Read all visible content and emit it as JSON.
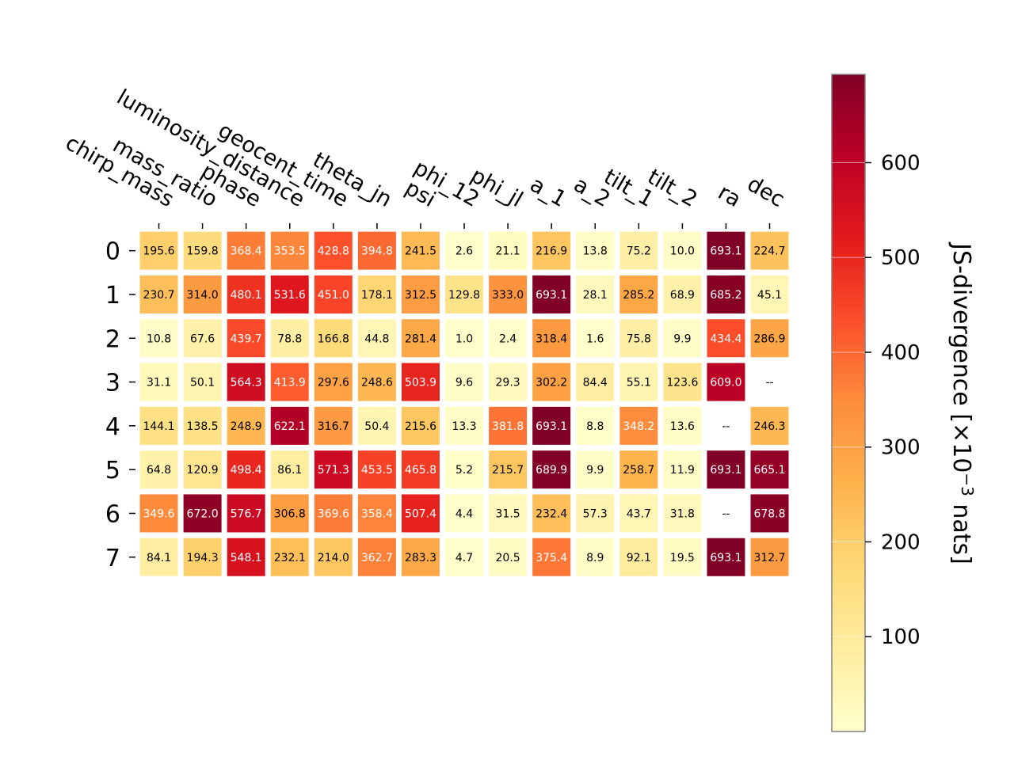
{
  "chart_data": {
    "type": "heatmap",
    "columns": [
      "chirp_mass",
      "mass_ratio",
      "phase",
      "luminosity_distance",
      "geocent_time",
      "theta_jn",
      "psi",
      "phi_12",
      "phi_jl",
      "a_1",
      "a_2",
      "tilt_1",
      "tilt_2",
      "ra",
      "dec"
    ],
    "rows": [
      "0",
      "1",
      "2",
      "3",
      "4",
      "5",
      "6",
      "7"
    ],
    "values": [
      [
        195.6,
        159.8,
        368.4,
        353.5,
        428.8,
        394.8,
        241.5,
        2.6,
        21.1,
        216.9,
        13.8,
        75.2,
        10.0,
        693.1,
        224.7
      ],
      [
        230.7,
        314.0,
        480.1,
        531.6,
        451.0,
        178.1,
        312.5,
        129.8,
        333.0,
        693.1,
        28.1,
        285.2,
        68.9,
        685.2,
        45.1
      ],
      [
        10.8,
        67.6,
        439.7,
        78.8,
        166.8,
        44.8,
        281.4,
        1.0,
        2.4,
        318.4,
        1.6,
        75.8,
        9.9,
        434.4,
        286.9
      ],
      [
        31.1,
        50.1,
        564.3,
        413.9,
        297.6,
        248.6,
        503.9,
        9.6,
        29.3,
        302.2,
        84.4,
        55.1,
        123.6,
        609.0,
        null
      ],
      [
        144.1,
        138.5,
        248.9,
        622.1,
        316.7,
        50.4,
        215.6,
        13.3,
        381.8,
        693.1,
        8.8,
        348.2,
        13.6,
        null,
        246.3
      ],
      [
        64.8,
        120.9,
        498.4,
        86.1,
        571.3,
        453.5,
        465.8,
        5.2,
        215.7,
        689.9,
        9.9,
        258.7,
        11.9,
        693.1,
        665.1
      ],
      [
        349.6,
        672.0,
        576.7,
        306.8,
        369.6,
        358.4,
        507.4,
        4.4,
        31.5,
        232.4,
        57.3,
        43.7,
        31.8,
        null,
        678.8
      ],
      [
        84.1,
        194.3,
        548.1,
        232.1,
        214.0,
        362.7,
        283.3,
        4.7,
        20.5,
        375.4,
        8.9,
        92.1,
        19.5,
        693.1,
        312.7
      ]
    ],
    "missing_label": "--",
    "colormap": "YlOrRd",
    "colorbar": {
      "label_prefix": "JS-divergence [×10",
      "label_exponent": "−3",
      "label_suffix": " nats]",
      "ticks": [
        100,
        200,
        300,
        400,
        500,
        600
      ],
      "range": [
        0,
        693.1
      ]
    },
    "grid": false
  }
}
